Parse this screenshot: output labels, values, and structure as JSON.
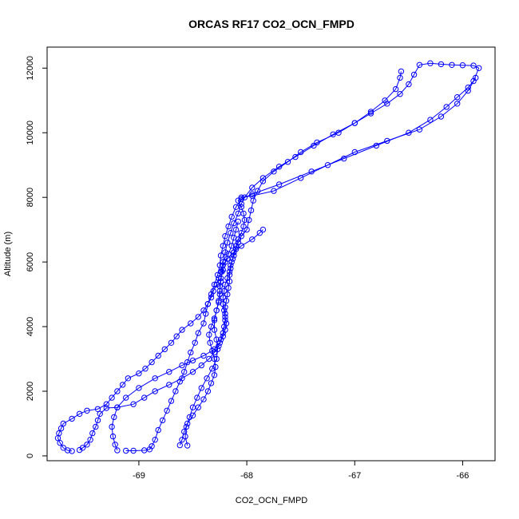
{
  "chart_data": {
    "type": "line",
    "title": "ORCAS RF17 CO2_OCN_FMPD",
    "xlabel": "CO2_OCN_FMPD",
    "ylabel": "Altitude (m)",
    "xlim": [
      -69.85,
      -65.7
    ],
    "ylim": [
      -150,
      12650
    ],
    "xticks": [
      -69,
      -68,
      -67,
      -66
    ],
    "yticks": [
      0,
      2000,
      4000,
      6000,
      8000,
      10000,
      12000
    ],
    "grid": false,
    "legend": "none",
    "marker": "open-circle",
    "line_style": "solid",
    "color": "#0000ff",
    "series": [
      {
        "points": [
          [
            -67.85,
            7000
          ],
          [
            -67.88,
            6900
          ],
          [
            -67.95,
            6700
          ],
          [
            -68.05,
            6500
          ],
          [
            -68.12,
            6300
          ],
          [
            -68.18,
            6100
          ],
          [
            -68.22,
            5900
          ],
          [
            -68.24,
            5700
          ],
          [
            -68.26,
            5500
          ],
          [
            -68.28,
            5300
          ],
          [
            -68.31,
            5100
          ],
          [
            -68.33,
            4900
          ],
          [
            -68.36,
            4700
          ],
          [
            -68.4,
            4500
          ],
          [
            -68.45,
            4300
          ],
          [
            -68.52,
            4100
          ],
          [
            -68.6,
            3900
          ],
          [
            -68.65,
            3700
          ],
          [
            -68.7,
            3500
          ],
          [
            -68.76,
            3300
          ],
          [
            -68.82,
            3100
          ],
          [
            -68.88,
            2900
          ],
          [
            -68.94,
            2700
          ],
          [
            -69.0,
            2550
          ],
          [
            -69.1,
            2400
          ],
          [
            -69.15,
            2200
          ],
          [
            -69.2,
            2000
          ],
          [
            -69.25,
            1800
          ],
          [
            -69.3,
            1600
          ],
          [
            -69.38,
            1450
          ],
          [
            -69.48,
            1400
          ],
          [
            -69.55,
            1300
          ],
          [
            -69.62,
            1150
          ],
          [
            -69.7,
            1000
          ],
          [
            -69.72,
            850
          ],
          [
            -69.74,
            700
          ],
          [
            -69.75,
            550
          ],
          [
            -69.73,
            400
          ],
          [
            -69.7,
            250
          ],
          [
            -69.66,
            170
          ],
          [
            -69.62,
            150
          ]
        ]
      },
      {
        "points": [
          [
            -69.55,
            180
          ],
          [
            -69.52,
            250
          ],
          [
            -69.48,
            350
          ],
          [
            -69.45,
            500
          ],
          [
            -69.43,
            700
          ],
          [
            -69.4,
            900
          ],
          [
            -69.38,
            1100
          ],
          [
            -69.36,
            1300
          ],
          [
            -69.3,
            1480
          ],
          [
            -69.2,
            1500
          ],
          [
            -69.05,
            1600
          ],
          [
            -68.95,
            1800
          ],
          [
            -68.85,
            2000
          ],
          [
            -68.72,
            2200
          ],
          [
            -68.6,
            2400
          ],
          [
            -68.5,
            2600
          ],
          [
            -68.42,
            2800
          ],
          [
            -68.35,
            3000
          ],
          [
            -68.3,
            3200
          ],
          [
            -68.26,
            3400
          ],
          [
            -68.24,
            3600
          ],
          [
            -68.22,
            3800
          ],
          [
            -68.21,
            4000
          ],
          [
            -68.2,
            4200
          ],
          [
            -68.2,
            4400
          ],
          [
            -68.2,
            4600
          ],
          [
            -68.19,
            4800
          ],
          [
            -68.18,
            5000
          ],
          [
            -68.17,
            5200
          ],
          [
            -68.16,
            5400
          ],
          [
            -68.16,
            5600
          ],
          [
            -68.15,
            5800
          ],
          [
            -68.14,
            6000
          ],
          [
            -68.12,
            6200
          ],
          [
            -68.1,
            6400
          ],
          [
            -68.08,
            6600
          ],
          [
            -68.05,
            6800
          ],
          [
            -68.0,
            7000
          ],
          [
            -67.98,
            7300
          ],
          [
            -67.96,
            7600
          ],
          [
            -67.94,
            7900
          ],
          [
            -67.9,
            8200
          ],
          [
            -67.85,
            8500
          ],
          [
            -67.75,
            8800
          ],
          [
            -67.62,
            9100
          ],
          [
            -67.5,
            9400
          ],
          [
            -67.35,
            9700
          ],
          [
            -67.15,
            10000
          ],
          [
            -67.0,
            10300
          ],
          [
            -66.85,
            10600
          ],
          [
            -66.7,
            10900
          ],
          [
            -66.58,
            11200
          ],
          [
            -66.5,
            11500
          ],
          [
            -66.45,
            11800
          ],
          [
            -66.4,
            12100
          ],
          [
            -66.3,
            12150
          ],
          [
            -66.2,
            12120
          ],
          [
            -66.1,
            12100
          ],
          [
            -66.0,
            12090
          ],
          [
            -65.9,
            12080
          ],
          [
            -65.85,
            12000
          ],
          [
            -65.9,
            11600
          ],
          [
            -65.95,
            11400
          ],
          [
            -66.05,
            11100
          ],
          [
            -66.15,
            10800
          ],
          [
            -66.3,
            10400
          ],
          [
            -66.5,
            10000
          ],
          [
            -66.8,
            9600
          ],
          [
            -67.1,
            9200
          ],
          [
            -67.4,
            8800
          ],
          [
            -67.7,
            8400
          ],
          [
            -67.95,
            8100
          ],
          [
            -68.05,
            7950
          ],
          [
            -68.1,
            7700
          ],
          [
            -68.14,
            7400
          ],
          [
            -68.17,
            7100
          ],
          [
            -68.2,
            6800
          ],
          [
            -68.22,
            6500
          ],
          [
            -68.24,
            6200
          ],
          [
            -68.25,
            5900
          ],
          [
            -68.27,
            5600
          ],
          [
            -68.3,
            5300
          ],
          [
            -68.33,
            5000
          ],
          [
            -68.36,
            4700
          ],
          [
            -68.38,
            4400
          ],
          [
            -68.4,
            4100
          ],
          [
            -68.45,
            3800
          ],
          [
            -68.48,
            3500
          ],
          [
            -68.52,
            3200
          ],
          [
            -68.55,
            2900
          ],
          [
            -68.58,
            2600
          ],
          [
            -68.62,
            2300
          ],
          [
            -68.66,
            2000
          ],
          [
            -68.7,
            1700
          ],
          [
            -68.74,
            1400
          ],
          [
            -68.78,
            1100
          ],
          [
            -68.82,
            800
          ],
          [
            -68.85,
            500
          ],
          [
            -68.88,
            300
          ],
          [
            -68.9,
            200
          ],
          [
            -68.95,
            170
          ],
          [
            -69.05,
            160
          ],
          [
            -69.12,
            160
          ]
        ]
      },
      {
        "points": [
          [
            -69.2,
            170
          ],
          [
            -69.22,
            350
          ],
          [
            -69.24,
            600
          ],
          [
            -69.25,
            900
          ],
          [
            -69.23,
            1200
          ],
          [
            -69.2,
            1500
          ],
          [
            -69.12,
            1800
          ],
          [
            -69.0,
            2100
          ],
          [
            -68.85,
            2400
          ],
          [
            -68.72,
            2600
          ],
          [
            -68.6,
            2800
          ],
          [
            -68.5,
            2950
          ],
          [
            -68.4,
            3100
          ],
          [
            -68.3,
            3300
          ],
          [
            -68.25,
            3500
          ],
          [
            -68.22,
            3700
          ],
          [
            -68.2,
            3900
          ],
          [
            -68.19,
            4100
          ],
          [
            -68.2,
            4300
          ],
          [
            -68.21,
            4500
          ],
          [
            -68.22,
            4700
          ],
          [
            -68.22,
            4900
          ],
          [
            -68.21,
            5100
          ],
          [
            -68.2,
            5300
          ],
          [
            -68.18,
            5500
          ],
          [
            -68.16,
            5700
          ],
          [
            -68.15,
            5900
          ],
          [
            -68.13,
            6100
          ],
          [
            -68.12,
            6300
          ],
          [
            -68.1,
            6500
          ],
          [
            -68.08,
            6700
          ],
          [
            -68.05,
            6900
          ],
          [
            -68.03,
            7100
          ],
          [
            -68.02,
            7300
          ],
          [
            -68.03,
            7500
          ],
          [
            -68.05,
            7700
          ],
          [
            -68.08,
            7900
          ],
          [
            -68.05,
            8000
          ],
          [
            -67.95,
            8050
          ],
          [
            -67.75,
            8200
          ],
          [
            -67.5,
            8600
          ],
          [
            -67.25,
            9000
          ],
          [
            -67.0,
            9400
          ],
          [
            -66.7,
            9750
          ],
          [
            -66.4,
            10100
          ],
          [
            -66.2,
            10500
          ],
          [
            -66.05,
            10900
          ],
          [
            -65.95,
            11300
          ],
          [
            -65.88,
            11700
          ]
        ]
      },
      {
        "points": [
          [
            -68.55,
            320
          ],
          [
            -68.57,
            600
          ],
          [
            -68.56,
            900
          ],
          [
            -68.53,
            1200
          ],
          [
            -68.5,
            1500
          ],
          [
            -68.46,
            1800
          ],
          [
            -68.42,
            2100
          ],
          [
            -68.37,
            2400
          ],
          [
            -68.32,
            2700
          ],
          [
            -68.28,
            3000
          ],
          [
            -68.27,
            3300
          ],
          [
            -68.28,
            3600
          ],
          [
            -68.3,
            3900
          ],
          [
            -68.3,
            4200
          ],
          [
            -68.28,
            4500
          ],
          [
            -68.26,
            4800
          ],
          [
            -68.25,
            5100
          ],
          [
            -68.24,
            5400
          ],
          [
            -68.23,
            5700
          ],
          [
            -68.22,
            6000
          ],
          [
            -68.2,
            6300
          ],
          [
            -68.18,
            6600
          ],
          [
            -68.15,
            6900
          ],
          [
            -68.12,
            7200
          ],
          [
            -68.08,
            7500
          ],
          [
            -68.05,
            7800
          ],
          [
            -68.02,
            8000
          ],
          [
            -67.95,
            8300
          ],
          [
            -67.85,
            8600
          ],
          [
            -67.7,
            8950
          ],
          [
            -67.55,
            9250
          ],
          [
            -67.38,
            9600
          ],
          [
            -67.2,
            9950
          ],
          [
            -67.0,
            10300
          ],
          [
            -66.85,
            10650
          ],
          [
            -66.72,
            11000
          ],
          [
            -66.62,
            11350
          ],
          [
            -66.58,
            11700
          ],
          [
            -66.57,
            11900
          ]
        ]
      },
      {
        "points": [
          [
            -68.62,
            330
          ],
          [
            -68.6,
            500
          ],
          [
            -68.58,
            750
          ],
          [
            -68.55,
            1000
          ],
          [
            -68.5,
            1250
          ],
          [
            -68.45,
            1500
          ],
          [
            -68.4,
            1750
          ],
          [
            -68.36,
            2000
          ],
          [
            -68.33,
            2250
          ],
          [
            -68.3,
            2500
          ],
          [
            -68.29,
            2750
          ],
          [
            -68.3,
            3000
          ],
          [
            -68.32,
            3250
          ],
          [
            -68.34,
            3500
          ],
          [
            -68.35,
            3750
          ],
          [
            -68.33,
            4000
          ],
          [
            -68.3,
            4250
          ],
          [
            -68.28,
            4500
          ],
          [
            -68.26,
            4750
          ],
          [
            -68.25,
            5000
          ],
          [
            -68.25,
            5250
          ],
          [
            -68.24,
            5500
          ],
          [
            -68.22,
            5750
          ],
          [
            -68.2,
            6000
          ],
          [
            -68.17,
            6250
          ],
          [
            -68.14,
            6500
          ],
          [
            -68.12,
            6750
          ],
          [
            -68.1,
            7000
          ],
          [
            -68.08,
            7250
          ]
        ]
      }
    ]
  }
}
